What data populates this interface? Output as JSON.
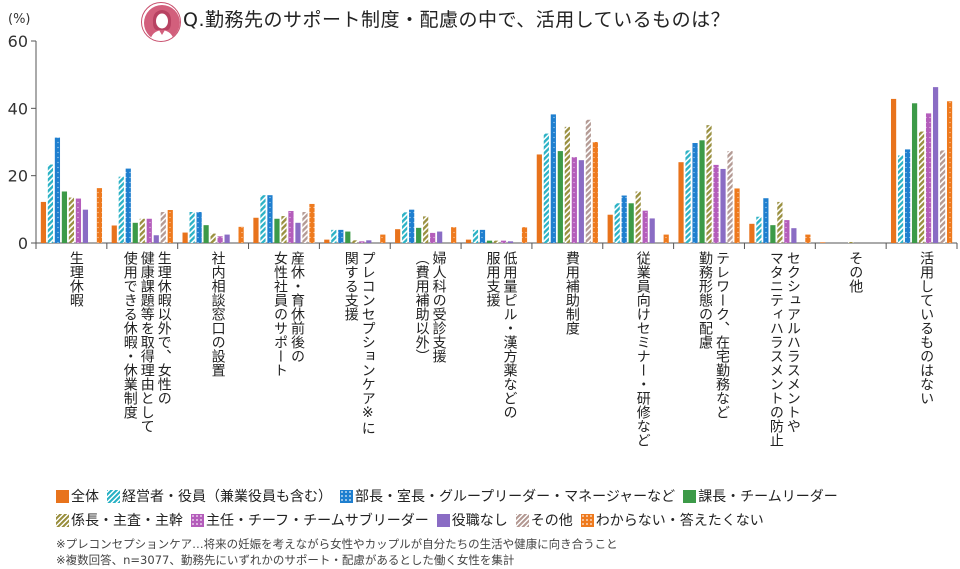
{
  "header": {
    "title": "Q.勤務先のサポート制度・配慮の中で、活用しているものは？",
    "avatar_icon": "woman-avatar-icon"
  },
  "chart_data": {
    "type": "bar",
    "title": "Q.勤務先のサポート制度・配慮の中で、活用しているものは？",
    "ylabel": "(%)",
    "xlabel": "",
    "ylim": [
      0,
      60
    ],
    "yticks": [
      "0",
      "20",
      "40",
      "60"
    ],
    "grid": false,
    "legend_position": "bottom",
    "categories": [
      "生理休暇",
      "生理休暇以外で、女性の\n健康課題等を取得理由として\n使用できる休暇・休業制度",
      "社内相談窓口の設置",
      "産休・育休前後の\n女性社員のサポート",
      "プレコンセプションケア※に\n関する支援",
      "婦人科の受診支援\n（費用補助以外）",
      "低用量ピル・漢方薬などの\n服用支援",
      "費用補助制度",
      "従業員向けセミナー・研修など",
      "テレワーク、在宅勤務など\n勤務形態の配慮",
      "セクシュアルハラスメントや\nマタニティハラスメントの防止",
      "その他",
      "活用しているものはない"
    ],
    "series": [
      {
        "name": "全体",
        "color": "#e8731c",
        "pattern": "solid",
        "values": [
          12.2,
          5.2,
          3.1,
          7.5,
          1.0,
          4.1,
          1.0,
          26.3,
          8.4,
          24.0,
          5.7,
          0.2,
          42.8
        ]
      },
      {
        "name": "経営者・役員（兼業役員も含む）",
        "color": "#2bb2c5",
        "pattern": "stripe",
        "values": [
          23.3,
          19.7,
          9.2,
          14.2,
          3.9,
          9.1,
          3.9,
          32.5,
          11.8,
          27.5,
          7.8,
          0,
          26.0
        ]
      },
      {
        "name": "部長・室長・グループリーダー・マネージャーなど",
        "color": "#1f7fcf",
        "pattern": "dots",
        "values": [
          31.3,
          22.1,
          9.2,
          14.2,
          3.9,
          9.9,
          3.9,
          38.2,
          14.1,
          29.7,
          13.3,
          0,
          27.8
        ]
      },
      {
        "name": "課長・チームリーダー",
        "color": "#3c9a48",
        "pattern": "solid",
        "values": [
          15.3,
          6.0,
          5.3,
          7.2,
          3.4,
          4.5,
          0.7,
          27.3,
          11.8,
          30.5,
          5.3,
          0,
          41.5
        ]
      },
      {
        "name": "係長・主査・主幹",
        "color": "#9a9040",
        "pattern": "stripe",
        "values": [
          13.5,
          7.2,
          2.8,
          8.0,
          0.8,
          7.9,
          0.7,
          34.5,
          15.3,
          35.0,
          12.2,
          0.3,
          33.1
        ]
      },
      {
        "name": "主任・チーフ・チームサブリーダー",
        "color": "#b45dbb",
        "pattern": "dots",
        "values": [
          13.2,
          7.2,
          2.0,
          9.5,
          0.5,
          3.0,
          0.7,
          25.5,
          9.6,
          23.2,
          6.8,
          0,
          38.5
        ]
      },
      {
        "name": "役職なし",
        "color": "#8a6cc4",
        "pattern": "solid",
        "values": [
          9.9,
          2.3,
          2.5,
          6.0,
          0.8,
          3.4,
          0.5,
          24.6,
          7.3,
          22.0,
          4.4,
          0,
          46.3
        ]
      },
      {
        "name": "その他",
        "color": "#b49a94",
        "pattern": "stripe",
        "values": [
          0,
          9.2,
          0,
          9.2,
          0,
          0,
          0,
          36.6,
          0,
          27.3,
          0,
          0,
          27.5
        ]
      },
      {
        "name": "わからない・答えたくない",
        "color": "#ee7a1e",
        "pattern": "dots",
        "values": [
          16.3,
          9.8,
          4.8,
          11.6,
          2.5,
          4.7,
          4.7,
          30.0,
          2.5,
          16.2,
          2.5,
          0,
          42.1
        ]
      }
    ]
  },
  "notes": [
    "※プレコンセプションケア…将来の妊娠を考えながら女性やカップルが自分たちの生活や健康に向き合うこと",
    "※複数回答、n=3077、勤務先にいずれかのサポート・配慮があるとした働く女性を集計"
  ]
}
